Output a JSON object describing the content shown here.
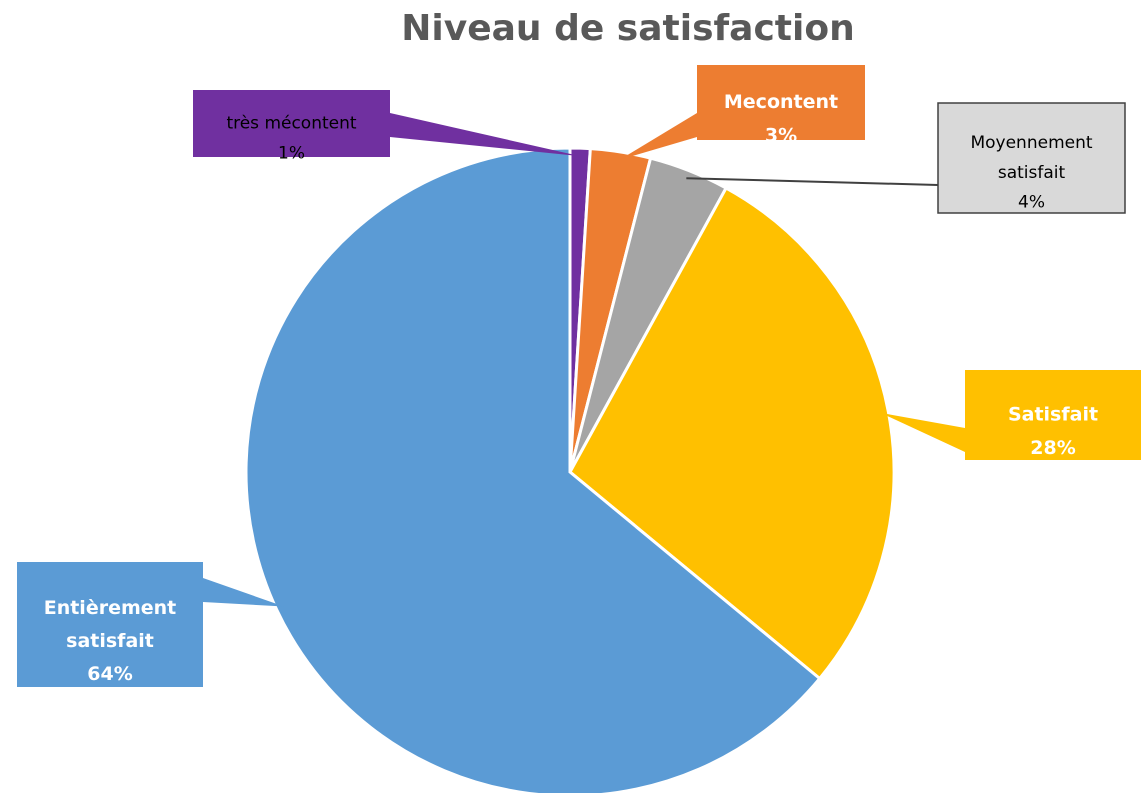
{
  "chart_data": {
    "type": "pie",
    "title": "Niveau de satisfaction",
    "categories": [
      "très mécontent",
      "Mecontent",
      "Moyennement satisfait",
      "Satisfait",
      "Entièrement satisfait"
    ],
    "values": [
      1,
      3,
      4,
      28,
      64
    ],
    "value_labels": [
      "1%",
      "3%",
      "4%",
      "28%",
      "64%"
    ],
    "colors": [
      "#7030a0",
      "#ed7d31",
      "#a5a5a5",
      "#ffc000",
      "#5b9bd5"
    ]
  }
}
